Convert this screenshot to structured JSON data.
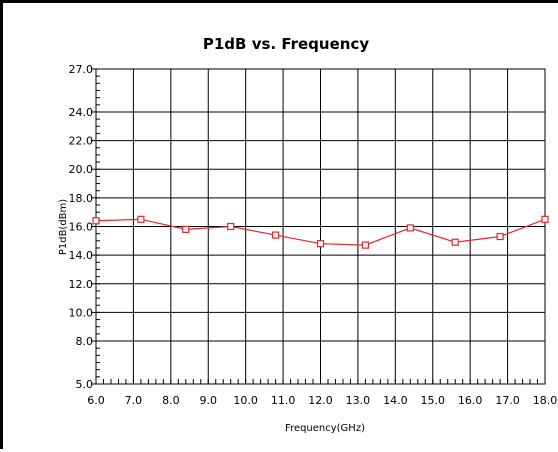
{
  "chart_data": {
    "type": "line",
    "title": "P1dB vs. Frequency",
    "xlabel": "Frequency(GHz)",
    "ylabel": "P1dB(dBm)",
    "xlim": [
      6.0,
      18.0
    ],
    "ylim": [
      5.0,
      27.0
    ],
    "x_ticks": [
      "6.0",
      "7.0",
      "8.0",
      "9.0",
      "10.0",
      "11.0",
      "12.0",
      "13.0",
      "14.0",
      "15.0",
      "16.0",
      "17.0",
      "18.0"
    ],
    "y_ticks": [
      {
        "value": 5.0,
        "label": "5.0"
      },
      {
        "value": 8.0,
        "label": "8.0"
      },
      {
        "value": 10.0,
        "label": "10.0"
      },
      {
        "value": 12.0,
        "label": "12.0"
      },
      {
        "value": 14.0,
        "label": "14.0"
      },
      {
        "value": 16.0,
        "label": "16.0"
      },
      {
        "value": 18.0,
        "label": "18.0"
      },
      {
        "value": 20.0,
        "label": "20.0"
      },
      {
        "value": 22.0,
        "label": "22.0"
      },
      {
        "value": 24.0,
        "label": "24.0"
      },
      {
        "value": 27.0,
        "label": "27.0"
      }
    ],
    "grid": true,
    "series": [
      {
        "color": "#e8262e",
        "marker": "square",
        "x": [
          6.0,
          7.2,
          8.4,
          9.6,
          10.8,
          12.0,
          13.2,
          14.4,
          15.6,
          16.8,
          18.0
        ],
        "y": [
          16.4,
          16.5,
          15.8,
          16.0,
          15.4,
          14.8,
          14.7,
          15.9,
          14.9,
          15.3,
          16.5
        ]
      }
    ]
  }
}
